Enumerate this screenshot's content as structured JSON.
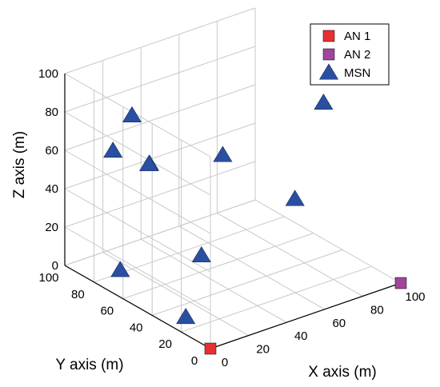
{
  "chart_data": {
    "type": "scatter",
    "projection": "3d",
    "xlabel": "X axis (m)",
    "ylabel": "Y axis (m)",
    "zlabel": "Z axis (m)",
    "xlim": [
      0,
      100
    ],
    "ylim": [
      0,
      100
    ],
    "zlim": [
      0,
      100
    ],
    "xticks": [
      0,
      20,
      40,
      60,
      80,
      100
    ],
    "yticks": [
      0,
      20,
      40,
      60,
      80,
      100
    ],
    "zticks": [
      0,
      20,
      40,
      60,
      80,
      100
    ],
    "grid": true,
    "legend_position": "top-right",
    "series": [
      {
        "name": "AN 1",
        "marker": "square",
        "color": "#e8312f",
        "points": [
          {
            "x": 0,
            "y": 0,
            "z": 0
          }
        ]
      },
      {
        "name": "AN 2",
        "marker": "square",
        "color": "#a3449c",
        "points": [
          {
            "x": 100,
            "y": 0,
            "z": 0
          }
        ]
      },
      {
        "name": "MSN",
        "marker": "triangle",
        "color": "#2a4fa0",
        "points": [
          {
            "x": 20,
            "y": 80,
            "z": 80
          },
          {
            "x": 10,
            "y": 80,
            "z": 65
          },
          {
            "x": 20,
            "y": 68,
            "z": 60
          },
          {
            "x": 25,
            "y": 75,
            "z": 55
          },
          {
            "x": 60,
            "y": 70,
            "z": 50
          },
          {
            "x": 90,
            "y": 40,
            "z": 80
          },
          {
            "x": 75,
            "y": 40,
            "z": 35
          },
          {
            "x": 10,
            "y": 75,
            "z": 5
          },
          {
            "x": 45,
            "y": 65,
            "z": 5
          },
          {
            "x": 10,
            "y": 30,
            "z": 0
          }
        ]
      }
    ]
  }
}
